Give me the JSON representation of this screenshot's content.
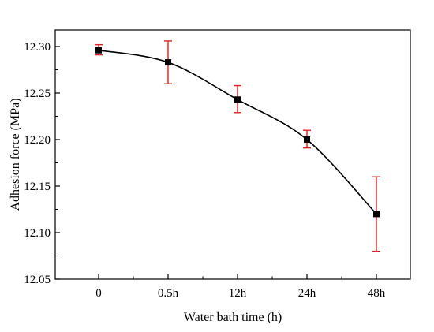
{
  "chart_data": {
    "type": "line",
    "title": "",
    "xlabel": "Water bath time (h)",
    "ylabel": "Adhesion force (MPa)",
    "categories": [
      "0",
      "0.5h",
      "12h",
      "24h",
      "48h"
    ],
    "series": [
      {
        "values": [
          12.296,
          12.283,
          12.243,
          12.2,
          12.12
        ],
        "error_low": [
          12.291,
          12.26,
          12.229,
          12.191,
          12.08
        ],
        "error_high": [
          12.302,
          12.306,
          12.258,
          12.21,
          12.16
        ],
        "line_color": "#000000",
        "marker_color": "#000000",
        "error_color": "#e02020",
        "marker": "square"
      }
    ],
    "ylim": [
      12.05,
      12.3
    ],
    "yticks": [
      "12.05",
      "12.10",
      "12.15",
      "12.20",
      "12.25",
      "12.30"
    ],
    "legend": "none",
    "grid": false,
    "line_style": "smooth"
  }
}
